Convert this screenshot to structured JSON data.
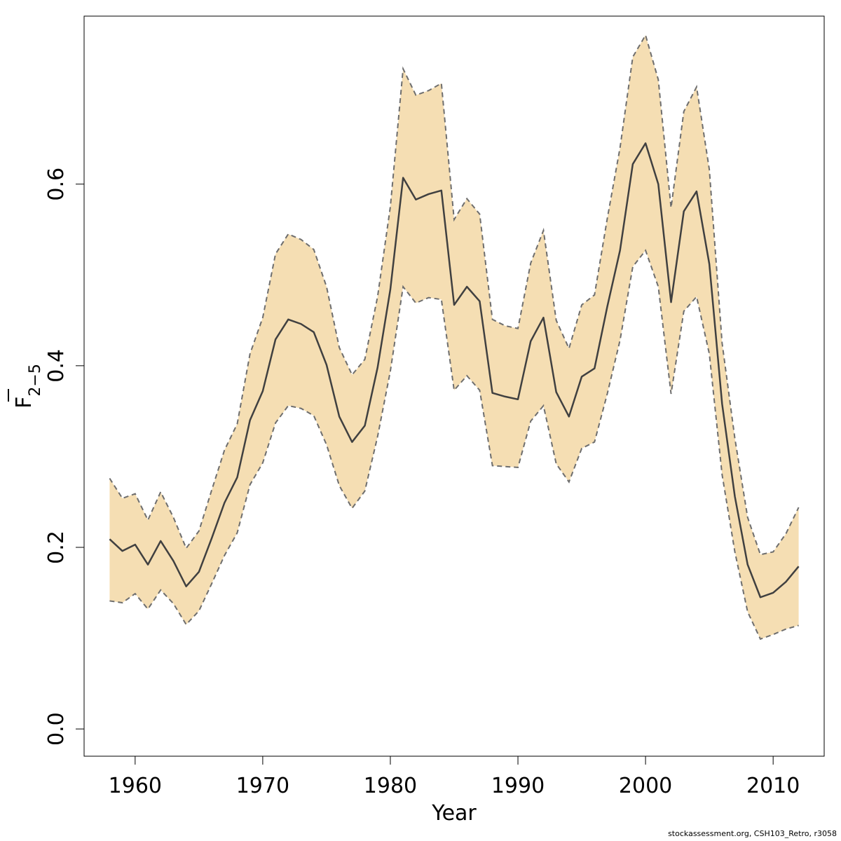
{
  "chart_data": {
    "type": "line",
    "xlabel": "Year",
    "ylabel_main": "F",
    "ylabel_sub": "2−5",
    "xlim": [
      1956,
      2014
    ],
    "ylim": [
      -0.03,
      0.785
    ],
    "xticks": [
      1960,
      1970,
      1980,
      1990,
      2000,
      2010
    ],
    "yticks": [
      0.0,
      0.2,
      0.4,
      0.6
    ],
    "ytick_labels": [
      "0.0",
      "0.2",
      "0.4",
      "0.6"
    ],
    "xtick_labels": [
      "1960",
      "1970",
      "1980",
      "1990",
      "2000",
      "2010"
    ],
    "x": [
      1958,
      1959,
      1960,
      1961,
      1962,
      1963,
      1964,
      1965,
      1966,
      1967,
      1968,
      1969,
      1970,
      1971,
      1972,
      1973,
      1974,
      1975,
      1976,
      1977,
      1978,
      1979,
      1980,
      1981,
      1982,
      1983,
      1984,
      1985,
      1986,
      1987,
      1988,
      1989,
      1990,
      1991,
      1992,
      1993,
      1994,
      1995,
      1996,
      1997,
      1998,
      1999,
      2000,
      2001,
      2002,
      2003,
      2004,
      2005,
      2006,
      2007,
      2008,
      2009,
      2010,
      2011,
      2012
    ],
    "series": [
      {
        "values": [
          0.209,
          0.196,
          0.203,
          0.181,
          0.207,
          0.185,
          0.157,
          0.173,
          0.21,
          0.249,
          0.277,
          0.34,
          0.372,
          0.429,
          0.451,
          0.446,
          0.437,
          0.401,
          0.344,
          0.316,
          0.334,
          0.398,
          0.484,
          0.607,
          0.583,
          0.589,
          0.593,
          0.467,
          0.487,
          0.471,
          0.37,
          0.366,
          0.363,
          0.427,
          0.453,
          0.371,
          0.344,
          0.388,
          0.397,
          0.465,
          0.527,
          0.622,
          0.645,
          0.6,
          0.47,
          0.57,
          0.592,
          0.512,
          0.358,
          0.256,
          0.181,
          0.145,
          0.15,
          0.162,
          0.179
        ]
      }
    ],
    "band_upper": [
      0.276,
      0.254,
      0.259,
      0.23,
      0.261,
      0.233,
      0.199,
      0.218,
      0.263,
      0.307,
      0.336,
      0.413,
      0.453,
      0.523,
      0.545,
      0.539,
      0.528,
      0.487,
      0.42,
      0.39,
      0.407,
      0.476,
      0.575,
      0.727,
      0.698,
      0.703,
      0.711,
      0.561,
      0.584,
      0.567,
      0.451,
      0.444,
      0.441,
      0.513,
      0.549,
      0.45,
      0.419,
      0.467,
      0.478,
      0.562,
      0.64,
      0.74,
      0.764,
      0.715,
      0.574,
      0.68,
      0.707,
      0.616,
      0.425,
      0.32,
      0.233,
      0.192,
      0.195,
      0.215,
      0.244
    ],
    "band_lower": [
      0.141,
      0.139,
      0.149,
      0.132,
      0.153,
      0.138,
      0.115,
      0.13,
      0.16,
      0.191,
      0.216,
      0.269,
      0.293,
      0.337,
      0.356,
      0.353,
      0.345,
      0.313,
      0.268,
      0.243,
      0.262,
      0.322,
      0.394,
      0.487,
      0.469,
      0.475,
      0.473,
      0.373,
      0.389,
      0.373,
      0.29,
      0.289,
      0.288,
      0.339,
      0.356,
      0.292,
      0.272,
      0.309,
      0.316,
      0.369,
      0.428,
      0.509,
      0.527,
      0.487,
      0.369,
      0.46,
      0.476,
      0.413,
      0.28,
      0.195,
      0.129,
      0.099,
      0.104,
      0.11,
      0.114
    ],
    "colors": {
      "band_fill": "#f5deb3",
      "band_edge": "#6e6e6e",
      "line": "#404040",
      "axis": "#000000"
    },
    "grid": false,
    "legend": "none"
  },
  "footer": "stockassessment.org, CSH103_Retro, r3058"
}
